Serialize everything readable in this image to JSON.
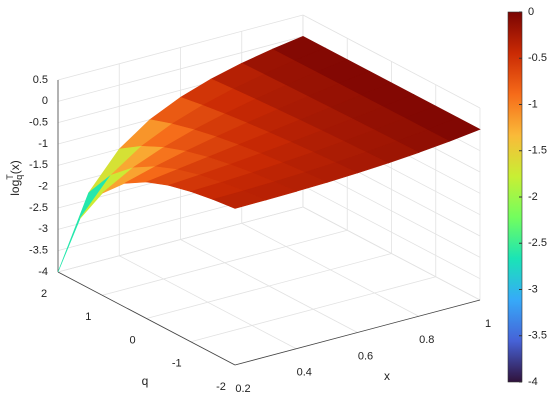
{
  "chart_data": {
    "type": "surface",
    "xlabel": "x",
    "ylabel": "q",
    "zlabel": {
      "base": "log",
      "sub": "q",
      "sup": "T",
      "arg": "(x)"
    },
    "x": [
      0.2,
      0.3,
      0.4,
      0.5,
      0.6,
      0.7,
      0.8,
      0.9,
      1
    ],
    "y": [
      -2,
      -1.5,
      -1,
      -0.5,
      0,
      0.5,
      1,
      1.5,
      2
    ],
    "z": [
      [
        -0.3307,
        -0.3243,
        -0.312,
        -0.2917,
        -0.2613,
        -0.219,
        -0.1627,
        -0.0903,
        0
      ],
      [
        -0.3928,
        -0.3803,
        -0.3595,
        -0.3293,
        -0.2885,
        -0.236,
        -0.171,
        -0.0926,
        0
      ],
      [
        -0.48,
        -0.455,
        -0.42,
        -0.375,
        -0.32,
        -0.255,
        -0.18,
        -0.095,
        0
      ],
      [
        -0.607,
        -0.5571,
        -0.498,
        -0.431,
        -0.3568,
        -0.2762,
        -0.1897,
        -0.0975,
        0
      ],
      [
        -0.8,
        -0.7,
        -0.6,
        -0.5,
        -0.4,
        -0.3,
        -0.2,
        -0.1,
        0
      ],
      [
        -1.1056,
        -0.9046,
        -0.7351,
        -0.5858,
        -0.4508,
        -0.3267,
        -0.2111,
        -0.1026,
        0
      ],
      [
        -1.6094,
        -1.204,
        -0.9163,
        -0.6931,
        -0.5108,
        -0.3567,
        -0.2231,
        -0.1054,
        0
      ],
      [
        -2.4721,
        -1.6515,
        -1.1623,
        -0.8284,
        -0.582,
        -0.3904,
        -0.2361,
        -0.1082,
        0
      ],
      [
        -4,
        -2.3333,
        -1.5,
        -1,
        -0.6667,
        -0.4286,
        -0.25,
        -0.1111,
        0
      ]
    ],
    "xlim": [
      0.2,
      1
    ],
    "xticks": [
      0.2,
      0.4,
      0.6,
      0.8,
      1
    ],
    "ylim": [
      -2,
      2
    ],
    "yticks": [
      -2,
      -1,
      0,
      1,
      2
    ],
    "zlim": [
      -4,
      0.5
    ],
    "zticks": [
      -4,
      -3.5,
      -3,
      -2.5,
      -2,
      -1.5,
      -1,
      -0.5,
      0,
      0.5
    ],
    "grid": true,
    "colormap": [
      "#30123b",
      "#4662d7",
      "#36aaf9",
      "#1ae4b6",
      "#72fe5e",
      "#c8ef34",
      "#faba39",
      "#f66b19",
      "#ca2a04",
      "#7a0403"
    ],
    "colorbar": {
      "lim": [
        -4,
        0
      ],
      "ticks": [
        -4,
        -3.5,
        -3,
        -2.5,
        -2,
        -1.5,
        -1,
        -0.5,
        0
      ]
    }
  }
}
